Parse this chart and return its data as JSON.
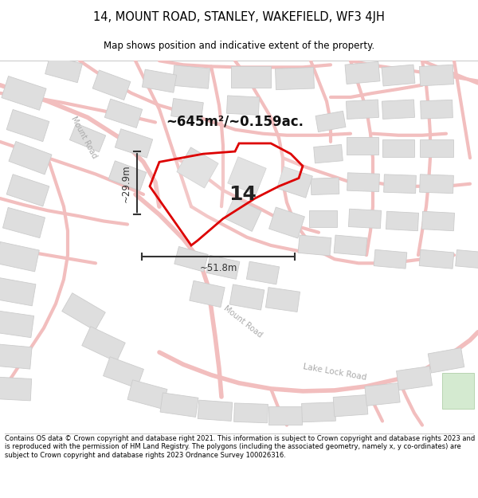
{
  "title_line1": "14, MOUNT ROAD, STANLEY, WAKEFIELD, WF3 4JH",
  "title_line2": "Map shows position and indicative extent of the property.",
  "footer_text": "Contains OS data © Crown copyright and database right 2021. This information is subject to Crown copyright and database rights 2023 and is reproduced with the permission of HM Land Registry. The polygons (including the associated geometry, namely x, y co-ordinates) are subject to Crown copyright and database rights 2023 Ordnance Survey 100026316.",
  "area_label": "~645m²/~0.159ac.",
  "property_number": "14",
  "dim_width": "~51.8m",
  "dim_height": "~29.9m",
  "bg_color": "#ffffff",
  "map_bg": "#ffffff",
  "road_color": "#f2bebe",
  "road_outline_color": "#e8a8a8",
  "building_color": "#dedede",
  "building_edge_color": "#cccccc",
  "property_outline_color": "#dd0000",
  "title_bg": "#ffffff",
  "footer_bg": "#ffffff",
  "road_label_color": "#aaaaaa",
  "dim_color": "#333333",
  "area_label_color": "#111111",
  "number_color": "#222222"
}
